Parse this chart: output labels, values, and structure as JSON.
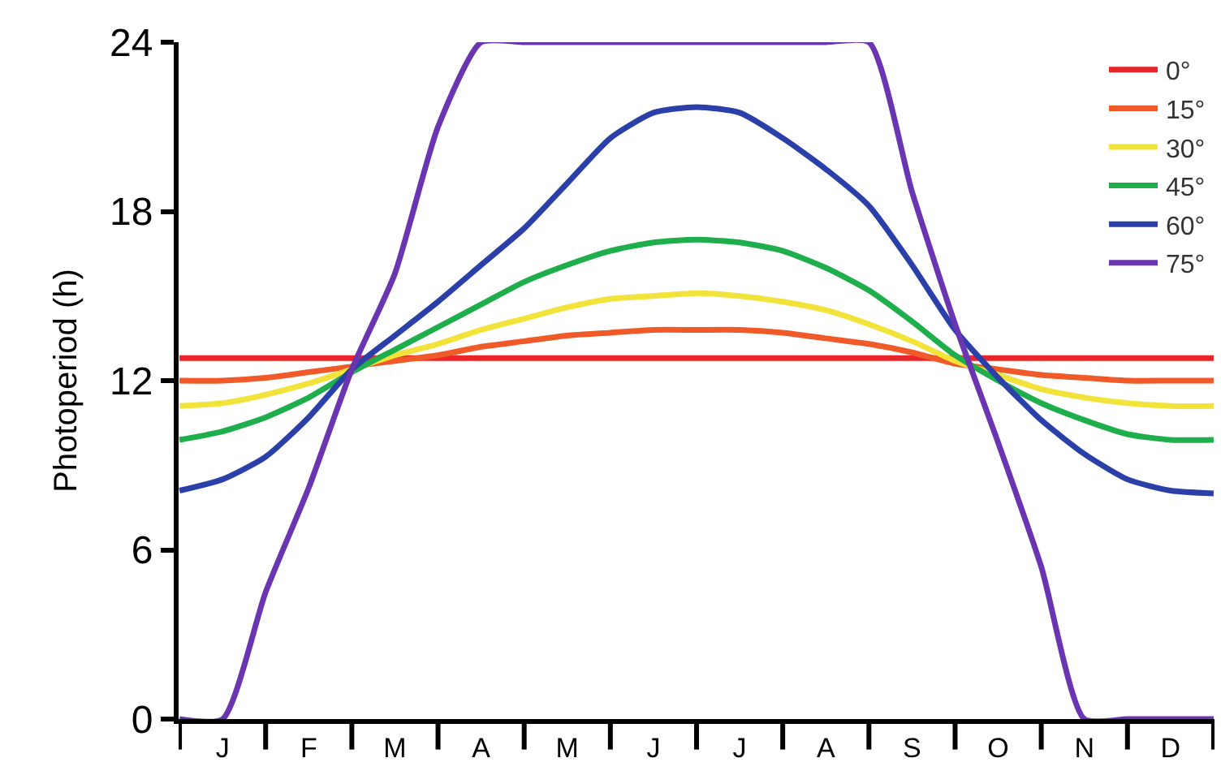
{
  "chart_data": {
    "type": "line",
    "ylabel": "Photoperiod (h)",
    "ylim": [
      0,
      24
    ],
    "yticks": [
      0,
      6,
      12,
      18,
      24
    ],
    "categories": [
      null,
      "J",
      null,
      "F",
      null,
      "M",
      null,
      "A",
      null,
      "M",
      null,
      "J",
      null,
      "J",
      null,
      "A",
      null,
      "S",
      null,
      "O",
      null,
      "N",
      null,
      "D",
      null
    ],
    "legend": "top right",
    "marker": "none",
    "line_style": "solid",
    "series": [
      {
        "name": "0°",
        "color": "#e8262a",
        "values": [
          12.8,
          12.8,
          12.8,
          12.8,
          12.8,
          12.8,
          12.8,
          12.8,
          12.8,
          12.8,
          12.8,
          12.8,
          12.8,
          12.8,
          12.8,
          12.8,
          12.8,
          12.8,
          12.8,
          12.8,
          12.8,
          12.8,
          12.8,
          12.8,
          12.8
        ]
      },
      {
        "name": "15°",
        "color": "#ef5a28",
        "values": [
          12.0,
          12.0,
          12.1,
          12.3,
          12.5,
          12.7,
          12.9,
          13.2,
          13.4,
          13.6,
          13.7,
          13.8,
          13.8,
          13.8,
          13.7,
          13.5,
          13.3,
          13.0,
          12.6,
          12.4,
          12.2,
          12.1,
          12.0,
          12.0,
          12.0
        ]
      },
      {
        "name": "30°",
        "color": "#f2e33a",
        "values": [
          11.1,
          11.2,
          11.5,
          11.9,
          12.4,
          12.9,
          13.3,
          13.8,
          14.2,
          14.6,
          14.9,
          15.0,
          15.1,
          15.0,
          14.8,
          14.5,
          14.0,
          13.4,
          12.7,
          12.2,
          11.7,
          11.4,
          11.2,
          11.1,
          11.1
        ]
      },
      {
        "name": "45°",
        "color": "#1eae4b",
        "values": [
          9.9,
          10.2,
          10.7,
          11.4,
          12.3,
          13.1,
          13.9,
          14.7,
          15.5,
          16.1,
          16.6,
          16.9,
          17.0,
          16.9,
          16.6,
          16.0,
          15.2,
          14.1,
          12.9,
          12.0,
          11.2,
          10.6,
          10.1,
          9.9,
          9.9
        ]
      },
      {
        "name": "60°",
        "color": "#2a3fa8",
        "values": [
          8.1,
          8.5,
          9.3,
          10.7,
          12.4,
          13.6,
          14.8,
          16.1,
          17.4,
          19.0,
          20.6,
          21.5,
          21.7,
          21.5,
          20.6,
          19.5,
          18.2,
          16.1,
          13.8,
          12.1,
          10.6,
          9.4,
          8.5,
          8.1,
          8.0
        ]
      },
      {
        "name": "75°",
        "color": "#6a35b0",
        "values": [
          0,
          0,
          4.5,
          8.2,
          12.4,
          15.8,
          21.0,
          24,
          24,
          24,
          24,
          24,
          24,
          24,
          24,
          24,
          24,
          18.7,
          14.0,
          9.8,
          5.4,
          0,
          0,
          0,
          0
        ]
      }
    ]
  }
}
